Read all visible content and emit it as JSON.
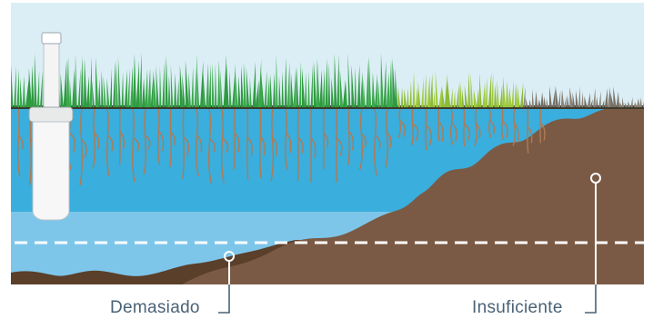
{
  "labels": {
    "too_much": "Demasiado",
    "too_little": "Insuficiente"
  },
  "colors": {
    "sky": "#dbeef5",
    "grass_green": "#3aa84a",
    "grass_light": "#9fc83c",
    "grass_dry": "#8a8276",
    "water_deep": "#3aaedc",
    "water_light": "#7dc6ea",
    "soil_dark": "#5a3f2a",
    "soil_mid": "#7a5a44",
    "roots": "#b07a55",
    "label_text": "#4a6276"
  },
  "icons": [
    "sprinkler-head",
    "roots",
    "water-level-line"
  ]
}
